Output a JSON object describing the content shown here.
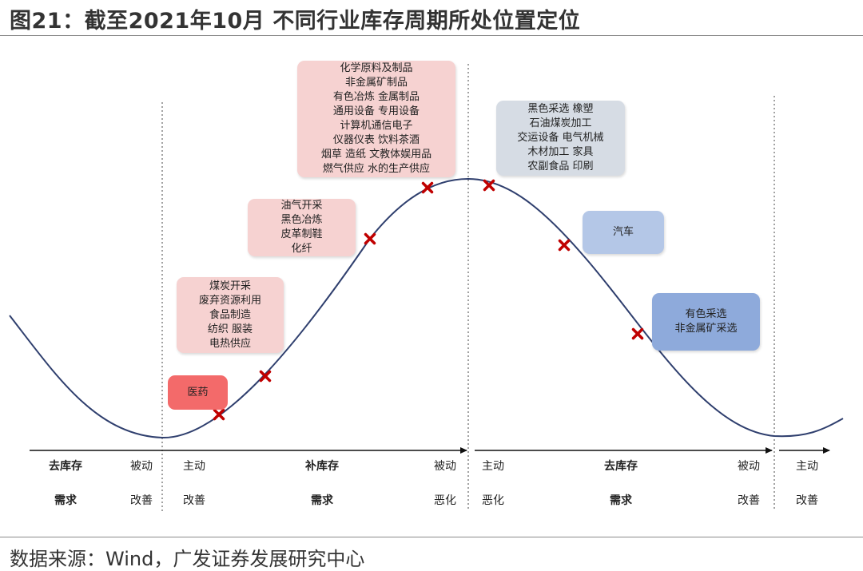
{
  "title": "图21：截至2021年10月 不同行业库存周期所处位置定位",
  "source": "数据来源：Wind，广发证券发展研究中心",
  "groups": {
    "yiyao": [
      "医药"
    ],
    "meitan": [
      "煤炭开采",
      "废弃资源利用",
      "食品制造",
      "纺织 服装",
      "电热供应"
    ],
    "youqi": [
      "油气开采",
      "黑色冶炼",
      "皮革制鞋",
      "化纤"
    ],
    "huaxue": [
      "化学原料及制品",
      "非金属矿制品",
      "有色冶炼 金属制品",
      "通用设备 专用设备",
      "计算机通信电子",
      "仪器仪表 饮料茶酒",
      "烟草 造纸 文教体娱用品",
      "燃气供应 水的生产供应"
    ],
    "heise": [
      "黑色采选 橡塑",
      "石油煤炭加工",
      "交运设备 电气机械",
      "木材加工 家具",
      "农副食品 印刷"
    ],
    "qiche": [
      "汽车"
    ],
    "youse": [
      "有色采选",
      "非金属矿采选"
    ]
  },
  "axis": {
    "row1": {
      "a": "去库存",
      "b": "被动",
      "c": "主动",
      "d": "补库存",
      "e": "被动",
      "f": "主动",
      "g": "去库存",
      "h": "被动",
      "i": "主动"
    },
    "row2": {
      "a": "需求",
      "b": "改善",
      "c": "改善",
      "d": "需求",
      "e": "恶化",
      "f": "恶化",
      "g": "需求",
      "h": "改善",
      "i": "改善"
    }
  },
  "colors": {
    "curve": "#2f3f6e",
    "marker": "#c00000",
    "pink": "#f6d2d1",
    "red": "#f36a6a",
    "grey": "#d6dce4",
    "light_blue": "#b4c7e7",
    "mid_blue": "#8eaadb"
  }
}
